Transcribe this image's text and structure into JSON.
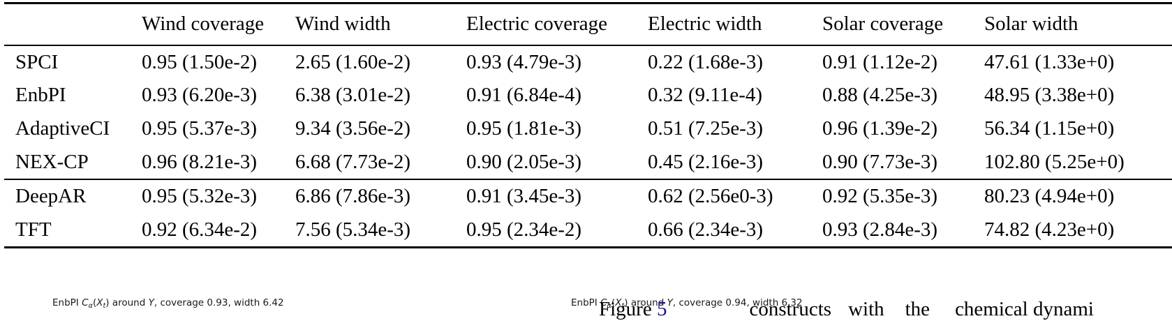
{
  "table": {
    "columns": [
      "",
      "Wind coverage",
      "Wind width",
      "Electric coverage",
      "Electric width",
      "Solar coverage",
      "Solar width"
    ],
    "groups": [
      {
        "rows": [
          {
            "label": "SPCI",
            "values": [
              "0.95 (1.50e-2)",
              "2.65 (1.60e-2)",
              "0.93 (4.79e-3)",
              "0.22 (1.68e-3)",
              "0.91 (1.12e-2)",
              "47.61 (1.33e+0)"
            ]
          },
          {
            "label": "EnbPI",
            "values": [
              "0.93 (6.20e-3)",
              "6.38 (3.01e-2)",
              "0.91 (6.84e-4)",
              "0.32 (9.11e-4)",
              "0.88 (4.25e-3)",
              "48.95 (3.38e+0)"
            ]
          },
          {
            "label": "AdaptiveCI",
            "values": [
              "0.95 (5.37e-3)",
              "9.34 (3.56e-2)",
              "0.95 (1.81e-3)",
              "0.51 (7.25e-3)",
              "0.96 (1.39e-2)",
              "56.34 (1.15e+0)"
            ]
          },
          {
            "label": "NEX-CP",
            "values": [
              "0.96 (8.21e-3)",
              "6.68 (7.73e-2)",
              "0.90 (2.05e-3)",
              "0.45 (2.16e-3)",
              "0.90 (7.73e-3)",
              "102.80 (5.25e+0)"
            ]
          }
        ]
      },
      {
        "rows": [
          {
            "label": "DeepAR",
            "values": [
              "0.95 (5.32e-3)",
              "6.86 (7.86e-3)",
              "0.91 (3.45e-3)",
              "0.62 (2.56e0-3)",
              "0.92 (5.35e-3)",
              "80.23 (4.94e+0)"
            ]
          },
          {
            "label": "TFT",
            "values": [
              "0.92 (6.34e-2)",
              "7.56 (5.34e-3)",
              "0.95 (2.34e-2)",
              "0.66 (2.34e-3)",
              "0.93 (2.84e-3)",
              "74.82 (4.23e+0)"
            ]
          }
        ]
      }
    ]
  },
  "captions": [
    {
      "segments": [
        {
          "t": "EnbPI "
        },
        {
          "t": "C",
          "i": true
        },
        {
          "t": "α",
          "sub": true
        },
        {
          "t": "("
        },
        {
          "t": "X",
          "i": true
        },
        {
          "t": "t",
          "sub": true
        },
        {
          "t": ") around "
        },
        {
          "t": "Y",
          "i": true
        },
        {
          "t": ", coverage 0.93, width 6.42"
        }
      ]
    },
    {
      "segments": [
        {
          "t": "EnbPI "
        },
        {
          "t": "C",
          "i": true
        },
        {
          "t": "α",
          "sub": true
        },
        {
          "t": "("
        },
        {
          "t": "X",
          "i": true
        },
        {
          "t": "t",
          "sub": true
        },
        {
          "t": ") around "
        },
        {
          "t": "Y",
          "i": true
        },
        {
          "t": ", coverage 0.94, width 6.32"
        }
      ]
    }
  ],
  "figure_line": {
    "parts": [
      {
        "t": "Figure "
      },
      {
        "t": "5",
        "link": true
      },
      {
        "t": "constructs",
        "gap": 118
      },
      {
        "t": "with",
        "gap": 24
      },
      {
        "t": "the",
        "gap": 30
      },
      {
        "t": "chemical dynami",
        "gap": 36
      }
    ],
    "link_color": "#0d0d99"
  }
}
